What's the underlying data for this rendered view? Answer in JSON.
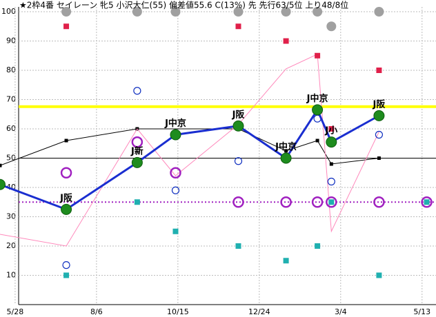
{
  "chart_data": {
    "type": "line",
    "title": "★2枠4番 セイレーン 牝5 小沢大仁(55) 偏差値55.6 C(13%) 先 先行63/5位 上り48/8位",
    "xlim": [
      -13,
      362
    ],
    "xticks": [
      {
        "value": 0,
        "label": "5/28"
      },
      {
        "value": 70,
        "label": "8/6"
      },
      {
        "value": 140,
        "label": "10/15"
      },
      {
        "value": 210,
        "label": "12/24"
      },
      {
        "value": 280,
        "label": "3/4"
      },
      {
        "value": 350,
        "label": "5/13"
      }
    ],
    "ylim": [
      0,
      100
    ],
    "yticks": [
      10,
      20,
      30,
      40,
      50,
      60,
      70,
      80,
      90,
      100
    ],
    "grid": true,
    "hlines": [
      {
        "value": 67.6,
        "color": "#ffff00",
        "width": 4
      },
      {
        "value": 35,
        "color": "#a020c0",
        "width": 2,
        "dash": true
      },
      {
        "value": 50,
        "color": "#000000",
        "width": 1
      }
    ],
    "series": [
      {
        "kind": "line",
        "color": "#000000",
        "width": 1,
        "marker": "square-small",
        "x": [
          -13,
          44,
          105,
          192,
          233,
          260,
          272,
          313
        ],
        "values": [
          47.5,
          56,
          60,
          60,
          52.5,
          56,
          48,
          50
        ]
      },
      {
        "kind": "line",
        "color": "#ff88bb",
        "width": 1,
        "marker": "none",
        "x": [
          -13,
          44,
          105,
          138,
          192,
          233,
          260,
          272,
          313
        ],
        "values": [
          24,
          20,
          60,
          44,
          61.5,
          80.5,
          85.5,
          25,
          59
        ]
      },
      {
        "kind": "points",
        "color": "#e0204a",
        "marker": "square",
        "x": [
          44,
          105,
          138,
          192,
          233,
          260,
          272,
          313
        ],
        "values": [
          95,
          100,
          100,
          95,
          90,
          85,
          60,
          80
        ]
      },
      {
        "kind": "points",
        "color": "#20b0b0",
        "marker": "square",
        "x": [
          44,
          105,
          138,
          192,
          233,
          260,
          272,
          313,
          354
        ],
        "values": [
          10,
          35,
          25,
          20,
          15,
          20,
          35,
          10,
          35
        ]
      },
      {
        "kind": "points",
        "color": "#a0a0a0",
        "marker": "dot",
        "x": [
          44,
          105,
          138,
          192,
          233,
          260,
          272,
          313
        ],
        "values": [
          100,
          100,
          100,
          100,
          100,
          100,
          95,
          100
        ]
      },
      {
        "kind": "points",
        "color": "#1030c0",
        "marker": "ring",
        "x": [
          44,
          105,
          138,
          192,
          260,
          272,
          313
        ],
        "values": [
          13.5,
          73,
          39,
          49,
          63.5,
          42,
          58
        ]
      },
      {
        "kind": "points",
        "color": "#a020c0",
        "marker": "ring-big",
        "x": [
          44,
          105,
          138,
          192,
          233,
          260,
          272,
          313,
          354
        ],
        "values": [
          45,
          55.5,
          45,
          35,
          35,
          35,
          35,
          35,
          35
        ]
      },
      {
        "kind": "line",
        "color": "#1a2ed0",
        "width": 3,
        "marker": "green",
        "x": [
          -13,
          44,
          105,
          138,
          192,
          233,
          260,
          272,
          313
        ],
        "values": [
          41,
          32.5,
          48.5,
          58,
          61,
          50,
          66.5,
          55.5,
          64.5
        ],
        "labels": [
          null,
          "J阪",
          "J新",
          "J中京",
          "J阪",
          "J中京",
          "J中京",
          "J小",
          "J阪"
        ]
      }
    ]
  }
}
